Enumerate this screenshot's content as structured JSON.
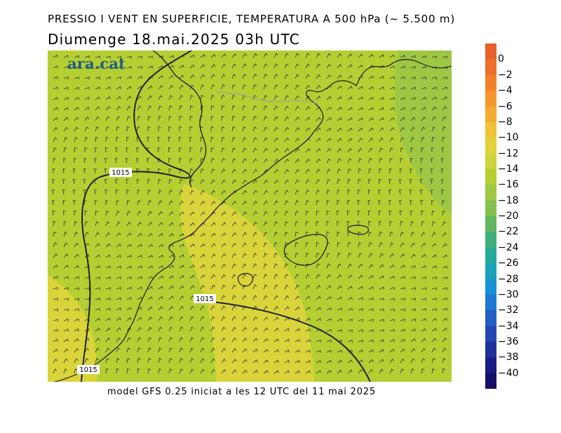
{
  "header": {
    "title": "PRESSIO I VENT EN SUPERFICIE, TEMPERATURA A 500 hPa (~ 5.500 m)",
    "subtitle": "Diumenge  18.mai.2025 03h UTC"
  },
  "map": {
    "logo_text": "ara.cat",
    "isobars": [
      {
        "value": 1015,
        "label": "1015"
      },
      {
        "value": 1015,
        "label": "1015"
      },
      {
        "value": 1015,
        "label": "1015"
      }
    ],
    "colors": {
      "field_base": "#b5cf32",
      "field_warm": "#d9d43a",
      "field_cool": "#9ec844",
      "coast": "#1a1a1a",
      "border": "#9a9a9a",
      "isobar": "#222222",
      "wind_barb": "#3a3a3a"
    }
  },
  "colorbar": {
    "unit": "",
    "entries": [
      {
        "label": "0",
        "color": "#e8602a"
      },
      {
        "label": "−2",
        "color": "#ee6f2a"
      },
      {
        "label": "−4",
        "color": "#f2822a"
      },
      {
        "label": "−6",
        "color": "#f4962c"
      },
      {
        "label": "−8",
        "color": "#f4ab30"
      },
      {
        "label": "−10",
        "color": "#efc338"
      },
      {
        "label": "−12",
        "color": "#e2d13a"
      },
      {
        "label": "−14",
        "color": "#ccd43a"
      },
      {
        "label": "−16",
        "color": "#b5cf32"
      },
      {
        "label": "−18",
        "color": "#9ec844"
      },
      {
        "label": "−20",
        "color": "#84c04c"
      },
      {
        "label": "−22",
        "color": "#5fb85e"
      },
      {
        "label": "−24",
        "color": "#3fb07c"
      },
      {
        "label": "−26",
        "color": "#25aa99"
      },
      {
        "label": "−28",
        "color": "#1aa2b8"
      },
      {
        "label": "−30",
        "color": "#1891d4"
      },
      {
        "label": "−32",
        "color": "#1f78d2"
      },
      {
        "label": "−34",
        "color": "#235ec4"
      },
      {
        "label": "−36",
        "color": "#2446b2"
      },
      {
        "label": "−38",
        "color": "#1f309c"
      },
      {
        "label": "−40",
        "color": "#1a1c84"
      },
      {
        "label": "",
        "color": "#150f66"
      }
    ]
  },
  "footer": {
    "text": "model GFS 0.25 iniciat a les 12 UTC del 11 mai 2025"
  }
}
